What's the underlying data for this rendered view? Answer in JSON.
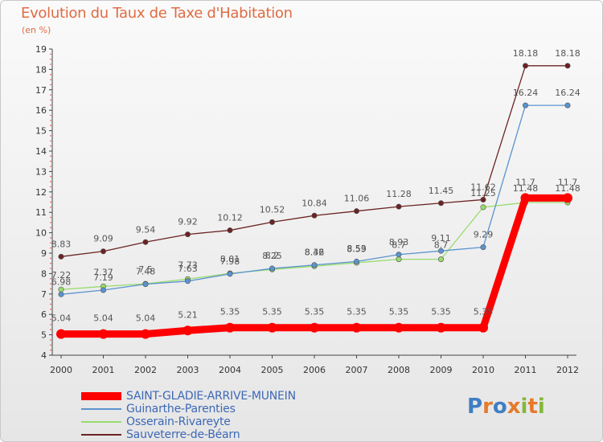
{
  "header": {
    "title": "Evolution du Taux de Taxe d'Habitation",
    "unit": "(en %)"
  },
  "logo": {
    "letters": [
      {
        "ch": "P",
        "color": "#3e7fc4"
      },
      {
        "ch": "r",
        "color": "#e57a2b"
      },
      {
        "ch": "o",
        "color": "#3e7fc4"
      },
      {
        "ch": "x",
        "color": "#e57a2b"
      },
      {
        "ch": "i",
        "color": "#84b83a"
      },
      {
        "ch": "t",
        "color": "#e57a2b"
      },
      {
        "ch": "i",
        "color": "#84b83a"
      }
    ]
  },
  "chart_data": {
    "type": "line",
    "title": "Evolution du Taux de Taxe d'Habitation",
    "ylabel": "(en %)",
    "xlabel": "",
    "x": [
      "2000",
      "2001",
      "2002",
      "2003",
      "2004",
      "2005",
      "2006",
      "2007",
      "2008",
      "2009",
      "2010",
      "2011",
      "2012"
    ],
    "ylim": [
      4,
      19
    ],
    "yticks": [
      "4",
      "5",
      "6",
      "7",
      "8",
      "9",
      "10",
      "11",
      "12",
      "13",
      "14",
      "15",
      "16",
      "17",
      "18",
      "19"
    ],
    "grid": false,
    "legend_position": "bottom-left",
    "series": [
      {
        "name": "SAINT-GLADIE-ARRIVE-MUNEIN",
        "color": "#ff0000",
        "values": [
          5.04,
          5.04,
          5.04,
          5.21,
          5.35,
          5.35,
          5.35,
          5.35,
          5.35,
          5.35,
          5.35,
          11.7,
          11.7
        ],
        "labels": [
          "5.04",
          "5.04",
          "5.04",
          "5.21",
          "5.35",
          "5.35",
          "5.35",
          "5.35",
          "5.35",
          "5.35",
          "5.35",
          "11.7",
          "11.7"
        ]
      },
      {
        "name": "Guinarthe-Parenties",
        "color": "#5b93cf",
        "values": [
          6.98,
          7.19,
          7.48,
          7.63,
          7.98,
          8.25,
          8.42,
          8.59,
          8.93,
          9.11,
          9.29,
          16.24,
          16.24
        ],
        "labels": [
          "6.98",
          "7.19",
          "7.48",
          "7.63",
          "7.98",
          "8.25",
          "8.42",
          "8.59",
          "8.93",
          "9.11",
          "9.29",
          "16.24",
          "16.24"
        ]
      },
      {
        "name": "Osserain-Rivareyte",
        "color": "#98dc6c",
        "values": [
          7.22,
          7.37,
          7.5,
          7.73,
          8.01,
          8.2,
          8.36,
          8.53,
          8.7,
          8.7,
          11.25,
          11.48,
          11.48
        ],
        "labels": [
          "7.22",
          "7.37",
          "7.5",
          "7.73",
          "8.01",
          "8.2",
          "8.36",
          "8.53",
          "8.7",
          "8.7",
          "11.25",
          "11.48",
          "11.48"
        ]
      },
      {
        "name": "Sauveterre-de-Béarn",
        "color": "#6b2323",
        "values": [
          8.83,
          9.09,
          9.54,
          9.92,
          10.12,
          10.52,
          10.84,
          11.06,
          11.28,
          11.45,
          11.62,
          18.18,
          18.18
        ],
        "labels": [
          "8.83",
          "9.09",
          "9.54",
          "9.92",
          "10.12",
          "10.52",
          "10.84",
          "11.06",
          "11.28",
          "11.45",
          "11.62",
          "18.18",
          "18.18"
        ]
      }
    ]
  },
  "legend": {
    "items": [
      {
        "label": "SAINT-GLADIE-ARRIVE-MUNEIN",
        "color": "#ff0000"
      },
      {
        "label": "Guinarthe-Parenties",
        "color": "#5b93cf"
      },
      {
        "label": "Osserain-Rivareyte",
        "color": "#98dc6c"
      },
      {
        "label": "Sauveterre-de-Béarn",
        "color": "#6b2323"
      }
    ]
  }
}
